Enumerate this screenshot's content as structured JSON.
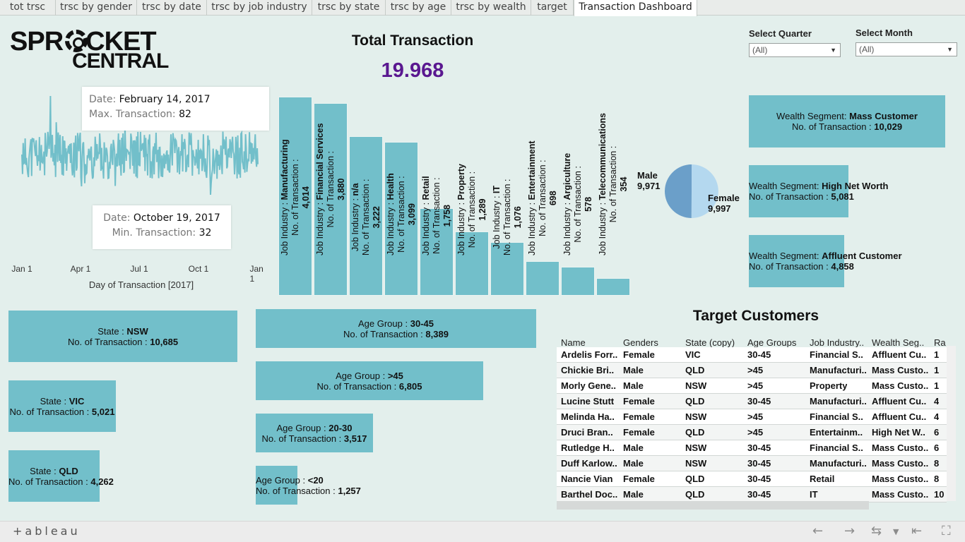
{
  "tabs": [
    {
      "label": "tot trsc"
    },
    {
      "label": "trsc by gender"
    },
    {
      "label": "trsc by date"
    },
    {
      "label": "trsc by job industry"
    },
    {
      "label": "trsc by state"
    },
    {
      "label": "trsc by age"
    },
    {
      "label": "trsc by wealth"
    },
    {
      "label": "target"
    },
    {
      "label": "Transaction Dashboard"
    }
  ],
  "logo": {
    "line1": "SPR",
    "line1b": "CKET",
    "line2": "CENTRAL"
  },
  "total": {
    "title": "Total Transaction",
    "value": "19.968",
    "value_color": "#5a1890"
  },
  "filters": {
    "quarter": {
      "label": "Select Quarter",
      "value": "(All)"
    },
    "month": {
      "label": "Select Month",
      "value": "(All)"
    }
  },
  "date_chart": {
    "tooltip_max": {
      "date_key": "Date:",
      "date": "February 14, 2017",
      "value_key": "Max. Transaction:",
      "value": "82"
    },
    "tooltip_min": {
      "date_key": "Date:",
      "date": "October 19, 2017",
      "value_key": "Min. Transaction:",
      "value": "32"
    },
    "xlabel": "Day of Transaction [2017]",
    "ticks": [
      "Jan 1",
      "Apr 1",
      "Jul 1",
      "Oct 1",
      "Jan 1"
    ]
  },
  "chart_data": [
    {
      "type": "line",
      "xlabel": "Day of Transaction [2017]",
      "x_range": [
        "2017-01-01",
        "2018-01-01"
      ],
      "series": [
        {
          "values_summary": {
            "max": 82,
            "max_date": "2017-02-14",
            "min": 32,
            "min_date": "2017-10-19"
          }
        }
      ]
    },
    {
      "type": "bar",
      "categories": [
        "Manufacturing",
        "Financial Services",
        "n/a",
        "Health",
        "Retail",
        "Property",
        "IT",
        "Entertainment",
        "Argiculture",
        "Telecommunications"
      ],
      "values": [
        4014,
        3880,
        3222,
        3099,
        1758,
        1289,
        1076,
        698,
        578,
        354
      ],
      "value_labels": [
        "4,014",
        "3,880",
        "3,222",
        "3,099",
        "1,758",
        "1,289",
        "1,076",
        "698",
        "578",
        "354"
      ],
      "category_prefix": "Job Industry :",
      "value_prefix": "No. of Transaction :"
    },
    {
      "type": "pie",
      "categories": [
        "Male",
        "Female"
      ],
      "values": [
        9971,
        9997
      ],
      "value_labels": [
        "9,971",
        "9,997"
      ],
      "colors": [
        "#6b9fc9",
        "#b4d8ef"
      ]
    },
    {
      "type": "bar",
      "orientation": "horizontal",
      "categories": [
        "Mass Customer",
        "High Net Worth",
        "Affluent Customer"
      ],
      "values": [
        10029,
        5081,
        4858
      ],
      "value_labels": [
        "10,029",
        "5,081",
        "4,858"
      ],
      "category_prefix": "Wealth Segment:",
      "value_prefix": "No. of Transaction :"
    },
    {
      "type": "bar",
      "orientation": "horizontal",
      "categories": [
        "NSW",
        "VIC",
        "QLD"
      ],
      "values": [
        10685,
        5021,
        4262
      ],
      "value_labels": [
        "10,685",
        "5,021",
        "4,262"
      ],
      "category_prefix": "State :",
      "value_prefix": "No. of Transaction :"
    },
    {
      "type": "bar",
      "orientation": "horizontal",
      "categories": [
        "30-45",
        ">45",
        "20-30",
        "<20"
      ],
      "values": [
        8389,
        6805,
        3517,
        1257
      ],
      "value_labels": [
        "8,389",
        "6,805",
        "3,517",
        "1,257"
      ],
      "category_prefix": "Age Group :",
      "value_prefix": "No. of Transaction :"
    }
  ],
  "target": {
    "title": "Target Customers",
    "headers": [
      "Name",
      "Genders",
      "State (copy)",
      "Age Groups",
      "Job Industry..",
      "Wealth Seg..",
      "Ra"
    ],
    "rows": [
      [
        "Ardelis Forr..",
        "Female",
        "VIC",
        "30-45",
        "Financial S..",
        "Affluent Cu..",
        "1"
      ],
      [
        "Chickie Bri..",
        "Male",
        "QLD",
        ">45",
        "Manufacturi..",
        "Mass Custo..",
        "1"
      ],
      [
        "Morly Gene..",
        "Male",
        "NSW",
        ">45",
        "Property",
        "Mass Custo..",
        "1"
      ],
      [
        "Lucine Stutt",
        "Female",
        "QLD",
        "30-45",
        "Manufacturi..",
        "Affluent Cu..",
        "4"
      ],
      [
        "Melinda Ha..",
        "Female",
        "NSW",
        ">45",
        "Financial S..",
        "Affluent Cu..",
        "4"
      ],
      [
        "Druci Bran..",
        "Female",
        "QLD",
        ">45",
        "Entertainm..",
        "High Net W..",
        "6"
      ],
      [
        "Rutledge H..",
        "Male",
        "NSW",
        "30-45",
        "Financial S..",
        "Mass Custo..",
        "6"
      ],
      [
        "Duff Karlow..",
        "Male",
        "NSW",
        "30-45",
        "Manufacturi..",
        "Mass Custo..",
        "8"
      ],
      [
        "Nancie Vian",
        "Female",
        "QLD",
        "30-45",
        "Retail",
        "Mass Custo..",
        "8"
      ],
      [
        "Barthel Doc..",
        "Male",
        "QLD",
        "30-45",
        "IT",
        "Mass Custo..",
        "10"
      ]
    ]
  },
  "footer": {
    "brand": "+ableau"
  },
  "colors": {
    "bar": "#72bfca",
    "background": "#e3efec"
  }
}
